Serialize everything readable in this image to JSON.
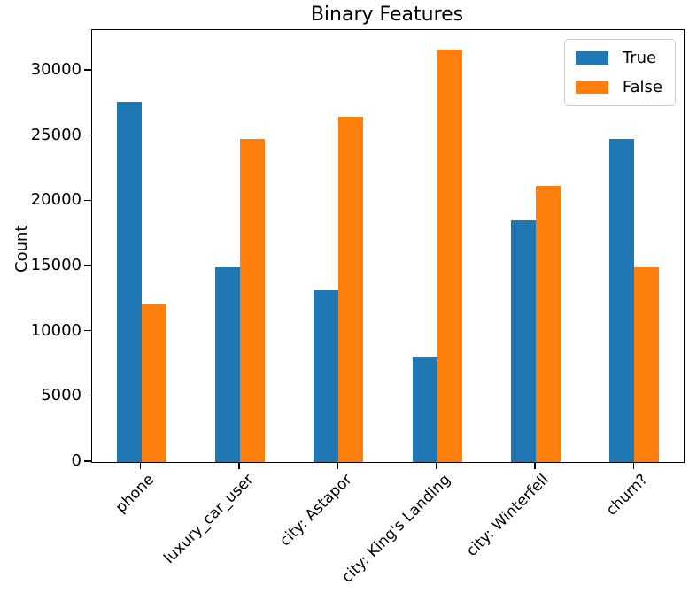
{
  "figure_title": "Binary Features",
  "chart_data": {
    "type": "bar",
    "title": "Binary Features",
    "xlabel": "",
    "ylabel": "Count",
    "categories": [
      "phone",
      "luxury_car_user",
      "city: Astapor",
      "city: King's Landing",
      "city: Winterfell",
      "churn?"
    ],
    "series": [
      {
        "name": "True",
        "color": "#1f77b4",
        "values": [
          27600,
          14900,
          13200,
          8100,
          18500,
          24800
        ]
      },
      {
        "name": "False",
        "color": "#ff7f0e",
        "values": [
          12100,
          24800,
          26500,
          31600,
          21200,
          14900
        ]
      }
    ],
    "ylim": [
      0,
      33120
    ],
    "yticks": [
      0,
      5000,
      10000,
      15000,
      20000,
      25000,
      30000
    ],
    "ytick_labels": [
      "0",
      "5000",
      "10000",
      "15000",
      "20000",
      "25000",
      "30000"
    ],
    "xtick_rotation_deg": 45,
    "grid": false,
    "legend_position": "upper right",
    "background_color": "#ffffff",
    "axis_color": "#000000"
  }
}
